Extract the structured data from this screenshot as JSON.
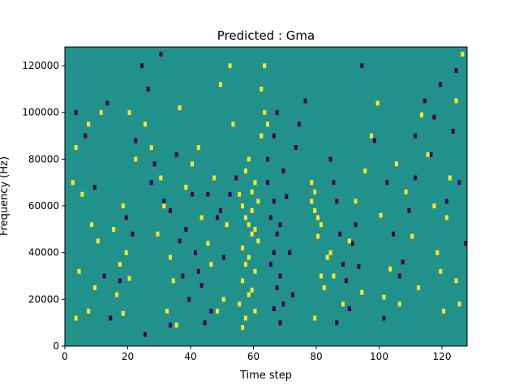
{
  "chart_data": {
    "type": "heatmap",
    "title": "Predicted : Gma",
    "xlabel": "Time step",
    "ylabel": "Frequency (Hz)",
    "xlim": [
      0,
      128
    ],
    "ylim": [
      0,
      128000
    ],
    "xticks": [
      0,
      20,
      40,
      60,
      80,
      100,
      120
    ],
    "yticks": [
      0,
      20000,
      40000,
      60000,
      80000,
      100000,
      120000
    ],
    "grid": false,
    "legend": "none",
    "colors": {
      "background": "#21918c",
      "high": "#fde725",
      "low": "#440154",
      "frame": "#000000"
    },
    "n_time": 128,
    "n_freq": 128,
    "bin_hz": 1000,
    "background_value": 0,
    "high_value": 1,
    "low_value": -1,
    "high_cells": [
      [
        55,
        18000
      ],
      [
        56,
        42000
      ],
      [
        56,
        60000
      ],
      [
        57,
        35000
      ],
      [
        58,
        52000
      ],
      [
        59,
        24000
      ],
      [
        60,
        70000
      ],
      [
        61,
        45000
      ],
      [
        55,
        65000
      ],
      [
        56,
        28000
      ],
      [
        57,
        75000
      ],
      [
        58,
        38000
      ],
      [
        59,
        58000
      ],
      [
        60,
        32000
      ],
      [
        61,
        62000
      ],
      [
        57,
        12000
      ],
      [
        58,
        80000
      ],
      [
        59,
        48000
      ],
      [
        56,
        8000
      ],
      [
        60,
        15000
      ],
      [
        57,
        55000
      ],
      [
        58,
        22000
      ],
      [
        59,
        66000
      ],
      [
        60,
        50000
      ],
      [
        63,
        120000
      ],
      [
        62,
        110000
      ],
      [
        64,
        95000
      ],
      [
        62,
        90000
      ],
      [
        63,
        100000
      ],
      [
        78,
        62000
      ],
      [
        79,
        58000
      ],
      [
        80,
        55000
      ],
      [
        81,
        52000
      ],
      [
        79,
        66000
      ],
      [
        78,
        70000
      ],
      [
        80,
        47000
      ],
      [
        81,
        30000
      ],
      [
        82,
        25000
      ],
      [
        79,
        12000
      ],
      [
        83,
        38000
      ],
      [
        3,
        85000
      ],
      [
        7,
        95000
      ],
      [
        11,
        100000
      ],
      [
        2,
        70000
      ],
      [
        5,
        65000
      ],
      [
        8,
        52000
      ],
      [
        10,
        45000
      ],
      [
        4,
        32000
      ],
      [
        9,
        25000
      ],
      [
        3,
        12000
      ],
      [
        7,
        15000
      ],
      [
        15,
        50000
      ],
      [
        18,
        60000
      ],
      [
        17,
        35000
      ],
      [
        16,
        22000
      ],
      [
        19,
        40000
      ],
      [
        20,
        29000
      ],
      [
        18,
        14000
      ],
      [
        20,
        100000
      ],
      [
        22,
        80000
      ],
      [
        25,
        95000
      ],
      [
        27,
        85000
      ],
      [
        30,
        72000
      ],
      [
        31,
        60000
      ],
      [
        29,
        48000
      ],
      [
        33,
        38000
      ],
      [
        34,
        28000
      ],
      [
        32,
        15000
      ],
      [
        35,
        9000
      ],
      [
        36,
        102000
      ],
      [
        38,
        68000
      ],
      [
        40,
        78000
      ],
      [
        42,
        85000
      ],
      [
        43,
        55000
      ],
      [
        45,
        44000
      ],
      [
        46,
        35000
      ],
      [
        48,
        15000
      ],
      [
        50,
        20000
      ],
      [
        52,
        120000
      ],
      [
        49,
        112000
      ],
      [
        53,
        95000
      ],
      [
        47,
        72000
      ],
      [
        51,
        52000
      ],
      [
        85,
        30000
      ],
      [
        88,
        18000
      ],
      [
        90,
        45000
      ],
      [
        92,
        62000
      ],
      [
        95,
        75000
      ],
      [
        97,
        90000
      ],
      [
        99,
        104000
      ],
      [
        100,
        56000
      ],
      [
        103,
        33000
      ],
      [
        105,
        78000
      ],
      [
        108,
        66000
      ],
      [
        110,
        47000
      ],
      [
        112,
        25000
      ],
      [
        113,
        99000
      ],
      [
        115,
        82000
      ],
      [
        117,
        60000
      ],
      [
        118,
        40000
      ],
      [
        120,
        15000
      ],
      [
        122,
        72000
      ],
      [
        124,
        28000
      ],
      [
        125,
        18000
      ],
      [
        126,
        125000
      ],
      [
        124,
        105000
      ],
      [
        121,
        55000
      ],
      [
        94,
        23000
      ],
      [
        101,
        21000
      ],
      [
        106,
        18000
      ],
      [
        119,
        32000
      ],
      [
        84,
        40000
      ]
    ],
    "low_cells": [
      [
        64,
        70000
      ],
      [
        65,
        55000
      ],
      [
        66,
        40000
      ],
      [
        67,
        25000
      ],
      [
        68,
        10000
      ],
      [
        66,
        62000
      ],
      [
        67,
        48000
      ],
      [
        68,
        30000
      ],
      [
        69,
        18000
      ],
      [
        65,
        35000
      ],
      [
        64,
        80000
      ],
      [
        66,
        90000
      ],
      [
        67,
        100000
      ],
      [
        66,
        16000
      ],
      [
        68,
        52000
      ],
      [
        69,
        75000
      ],
      [
        70,
        64000
      ],
      [
        71,
        40000
      ],
      [
        72,
        22000
      ],
      [
        73,
        85000
      ],
      [
        74,
        95000
      ],
      [
        76,
        105000
      ],
      [
        86,
        62000
      ],
      [
        87,
        48000
      ],
      [
        88,
        35000
      ],
      [
        89,
        28000
      ],
      [
        90,
        16000
      ],
      [
        91,
        44000
      ],
      [
        92,
        52000
      ],
      [
        85,
        70000
      ],
      [
        84,
        80000
      ],
      [
        86,
        10000
      ],
      [
        12,
        30000
      ],
      [
        14,
        12000
      ],
      [
        17,
        28000
      ],
      [
        21,
        48000
      ],
      [
        24,
        120000
      ],
      [
        26,
        110000
      ],
      [
        28,
        78000
      ],
      [
        31,
        62000
      ],
      [
        33,
        58000
      ],
      [
        36,
        45000
      ],
      [
        37,
        30000
      ],
      [
        39,
        20000
      ],
      [
        41,
        40000
      ],
      [
        43,
        26000
      ],
      [
        44,
        10000
      ],
      [
        46,
        15000
      ],
      [
        25,
        5000
      ],
      [
        30,
        125000
      ],
      [
        38,
        50000
      ],
      [
        40,
        65000
      ],
      [
        42,
        32000
      ],
      [
        48,
        55000
      ],
      [
        50,
        38000
      ],
      [
        52,
        65000
      ],
      [
        54,
        72000
      ],
      [
        45,
        65000
      ],
      [
        49,
        58000
      ],
      [
        33,
        9000
      ],
      [
        94,
        120000
      ],
      [
        98,
        88000
      ],
      [
        102,
        70000
      ],
      [
        104,
        48000
      ],
      [
        107,
        36000
      ],
      [
        109,
        58000
      ],
      [
        111,
        90000
      ],
      [
        114,
        105000
      ],
      [
        116,
        82000
      ],
      [
        119,
        112000
      ],
      [
        121,
        62000
      ],
      [
        123,
        92000
      ],
      [
        125,
        70000
      ],
      [
        127,
        44000
      ],
      [
        101,
        12000
      ],
      [
        106,
        30000
      ],
      [
        111,
        72000
      ],
      [
        117,
        98000
      ],
      [
        124,
        118000
      ],
      [
        93,
        34000
      ],
      [
        3,
        100000
      ],
      [
        6,
        90000
      ],
      [
        9,
        68000
      ],
      [
        13,
        104000
      ],
      [
        19,
        55000
      ],
      [
        22,
        88000
      ],
      [
        27,
        70000
      ],
      [
        35,
        82000
      ]
    ]
  }
}
